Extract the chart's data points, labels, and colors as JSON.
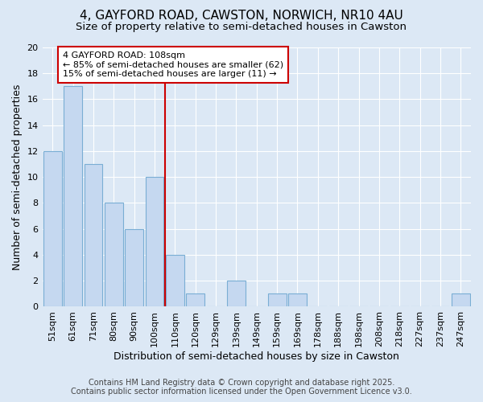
{
  "title_line1": "4, GAYFORD ROAD, CAWSTON, NORWICH, NR10 4AU",
  "title_line2": "Size of property relative to semi-detached houses in Cawston",
  "xlabel": "Distribution of semi-detached houses by size in Cawston",
  "ylabel": "Number of semi-detached properties",
  "categories": [
    "51sqm",
    "61sqm",
    "71sqm",
    "80sqm",
    "90sqm",
    "100sqm",
    "110sqm",
    "120sqm",
    "129sqm",
    "139sqm",
    "149sqm",
    "159sqm",
    "169sqm",
    "178sqm",
    "188sqm",
    "198sqm",
    "208sqm",
    "218sqm",
    "227sqm",
    "237sqm",
    "247sqm"
  ],
  "values": [
    12,
    17,
    11,
    8,
    6,
    10,
    4,
    1,
    0,
    2,
    0,
    1,
    1,
    0,
    0,
    0,
    0,
    0,
    0,
    0,
    1
  ],
  "bar_color": "#c5d8f0",
  "bar_edge_color": "#7aaed4",
  "vline_color": "#cc0000",
  "vline_bin_index": 6,
  "annotation_text": "4 GAYFORD ROAD: 108sqm\n← 85% of semi-detached houses are smaller (62)\n15% of semi-detached houses are larger (11) →",
  "annotation_box_color": "#cc0000",
  "ylim": [
    0,
    20
  ],
  "yticks": [
    0,
    2,
    4,
    6,
    8,
    10,
    12,
    14,
    16,
    18,
    20
  ],
  "footer_line1": "Contains HM Land Registry data © Crown copyright and database right 2025.",
  "footer_line2": "Contains public sector information licensed under the Open Government Licence v3.0.",
  "bg_color": "#dce8f5",
  "plot_bg_color": "#dce8f5",
  "title_fontsize": 11,
  "subtitle_fontsize": 9.5,
  "axis_label_fontsize": 9,
  "tick_fontsize": 8,
  "footer_fontsize": 7,
  "annotation_fontsize": 8
}
